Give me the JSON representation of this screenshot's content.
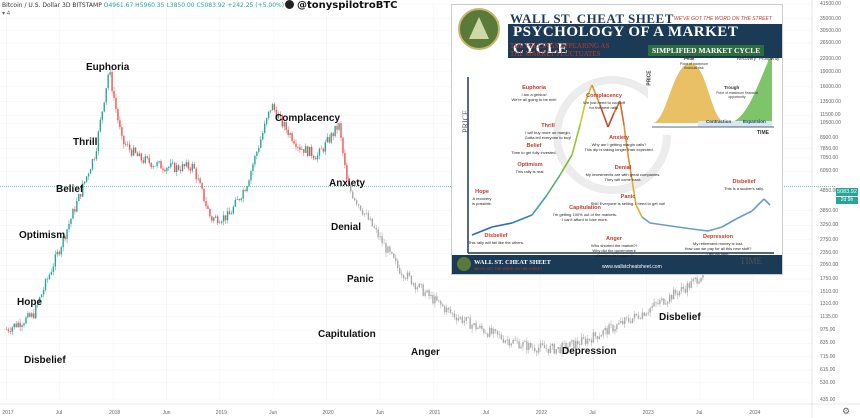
{
  "header": {
    "title": "Bitcoin / U.S. Dollar  3D  BITSTAMP",
    "ohlc": "O4961.67  H5960.35  L3850.00  C5083.92  +242.25 (+5.00%)",
    "handle": "@tonyspilotroBTC",
    "indicator": "4"
  },
  "price_labels": {
    "current": "5083.92",
    "countdown": "2d 9h"
  },
  "chart_data": {
    "type": "line",
    "title": "",
    "xlabel": "",
    "ylabel": "",
    "ylim": [
      435,
      41500
    ],
    "log_scale": true,
    "x": [
      "2017-01",
      "2017-04",
      "2017-07",
      "2017-09",
      "2017-11",
      "2017-12-17",
      "2018-02",
      "2018-04",
      "2018-06",
      "2018-08",
      "2018-10",
      "2018-12",
      "2019-02",
      "2019-04",
      "2019-06-26",
      "2019-08",
      "2019-10",
      "2019-12",
      "2020-02-13",
      "2020-03-12",
      "2020-04",
      "2020-06",
      "2020-09",
      "2020-12",
      "2021-03",
      "2021-06",
      "2021-09",
      "2021-12",
      "2022-03",
      "2022-06",
      "2022-09",
      "2022-12",
      "2023-03",
      "2023-06",
      "2023-08"
    ],
    "series": [
      {
        "values": [
          980,
          1150,
          2500,
          4300,
          7500,
          19500,
          8500,
          7000,
          6500,
          6300,
          6400,
          3500,
          3600,
          5200,
          13000,
          10500,
          8000,
          7200,
          10300,
          5100,
          4600,
          3300,
          2000,
          1500,
          1180,
          1000,
          880,
          800,
          780,
          860,
          990,
          1150,
          1380,
          1650,
          2000
        ]
      }
    ],
    "y_ticks": [
      "41500.00",
      "35000.00",
      "30500.00",
      "26500.00",
      "22000.00",
      "19000.00",
      "16000.00",
      "13500.00",
      "11500.00",
      "10500.00",
      "8900.00",
      "7850.00",
      "7050.00",
      "6050.00",
      "4850.00",
      "3850.00",
      "3250.00",
      "2750.00",
      "2350.00",
      "2050.00",
      "1750.00",
      "1510.00",
      "1310.00",
      "1135.00",
      "975.00",
      "835.00",
      "715.00",
      "615.00",
      "530.00",
      "435.00"
    ],
    "x_ticks": [
      "2017",
      "Jul",
      "2018",
      "Jun",
      "2019",
      "Jun",
      "2020",
      "Jun",
      "2021",
      "Jul",
      "2022",
      "Jul",
      "2023",
      "Jul",
      "2024"
    ],
    "phases": [
      {
        "label": "Euphoria"
      },
      {
        "label": "Thrill"
      },
      {
        "label": "Complacency"
      },
      {
        "label": "Belief"
      },
      {
        "label": "Anxiety"
      },
      {
        "label": "Optimism"
      },
      {
        "label": "Denial"
      },
      {
        "label": "Panic"
      },
      {
        "label": "Hope"
      },
      {
        "label": "Capitulation"
      },
      {
        "label": "Anger"
      },
      {
        "label": "Disbelief"
      },
      {
        "label": "Depression"
      },
      {
        "label": "Disbelief"
      }
    ]
  },
  "inset": {
    "title_line1": "WALL ST. CHEAT SHEET",
    "tagline": "WE'VE GOT THE WORD ON THE STREET",
    "title_line2": "PSYCHOLOGY OF A MARKET CYCLE",
    "subtitle": "THE FEELINGS APPEARING AS THE MARKET FLUCTUATES",
    "simplified_label": "SIMPLIFIED MARKET CYCLE",
    "small_chart": {
      "peak": "Peak",
      "peak_sub": "Point of maximum financial risk",
      "trough": "Trough",
      "trough_sub": "Point of maximum financial opportunity",
      "recovery": "Recovery",
      "prosperity": "Prosperity",
      "contraction": "Contraction",
      "expansion": "Expansion",
      "price_axis": "PRICE",
      "time_axis": "TIME"
    },
    "axis_price": "PRICE",
    "axis_time": "TIME",
    "phases": [
      {
        "label": "Euphoria",
        "quote": "I am a genius!\nWe're all going to be rich!"
      },
      {
        "label": "Thrill",
        "quote": "I will buy more on margin.\nGotta tell everyone to buy!"
      },
      {
        "label": "Complacency",
        "quote": "We just need to cool off\nfor the next rally."
      },
      {
        "label": "Anxiety",
        "quote": "Why am I getting margin calls?\nThis dip is taking longer than expected."
      },
      {
        "label": "Belief",
        "quote": "Time to get fully invested."
      },
      {
        "label": "Denial",
        "quote": "My investments are with great companies.\nThey will come back."
      },
      {
        "label": "Optimism",
        "quote": "This rally is real."
      },
      {
        "label": "Panic",
        "quote": "Shit! Everyone is selling. I need to get out!"
      },
      {
        "label": "Hope",
        "quote": "A recovery\nis possible."
      },
      {
        "label": "Capitulation",
        "quote": "I'm getting 100% out of the markets.\nI can't afford to lose more."
      },
      {
        "label": "Disbelief",
        "quote": "This is a sucker's rally."
      },
      {
        "label": "Disbelief",
        "quote": "This rally will fail like the others."
      },
      {
        "label": "Anger",
        "quote": "Who shorted the market?!\nWhy did the government\nallow this to happen?"
      },
      {
        "label": "Depression",
        "quote": "My retirement money is lost.\nHow can we pay for all this new stuff?\nI am an idiot."
      }
    ],
    "brand": "WALL ST. CHEAT SHEET",
    "brand_tagline": "WE'VE GOT THE WORD ON THE STREET",
    "url": "www.wallstcheatsheet.com"
  },
  "colors": {
    "up": "#26a69a",
    "down": "#ef5350",
    "postcrash": "#a8a8a8",
    "inset_navy": "#1a3a55",
    "inset_red": "#c0392b"
  }
}
